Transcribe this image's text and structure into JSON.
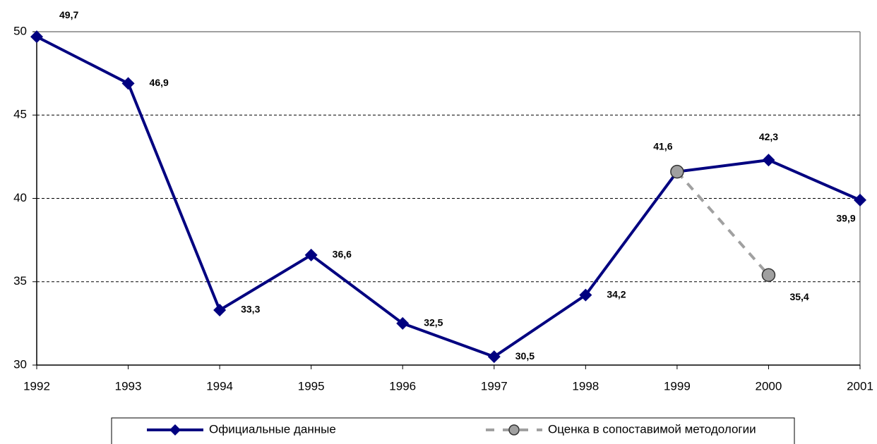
{
  "chart_data": {
    "type": "line",
    "categories": [
      "1992",
      "1993",
      "1994",
      "1995",
      "1996",
      "1997",
      "1998",
      "1999",
      "2000",
      "2001"
    ],
    "series": [
      {
        "name": "Официальные данные",
        "color": "#000080",
        "values": [
          49.7,
          46.9,
          33.3,
          36.6,
          32.5,
          30.5,
          34.2,
          41.6,
          42.3,
          39.9
        ],
        "value_labels": [
          "49,7",
          "46,9",
          "33,3",
          "36,6",
          "32,5",
          "30,5",
          "34,2",
          "41,6",
          "42,3",
          "39,9"
        ]
      },
      {
        "name": "Оценка в сопоставимой методологии",
        "color": "#a0a0a0",
        "values": [
          null,
          null,
          null,
          null,
          null,
          null,
          null,
          41.6,
          35.4,
          null
        ],
        "value_labels": [
          null,
          null,
          null,
          null,
          null,
          null,
          null,
          null,
          "35,4",
          null
        ]
      }
    ],
    "ylim": [
      30,
      50
    ],
    "yticks": [
      30,
      35,
      40,
      45,
      50
    ],
    "grid": true
  }
}
